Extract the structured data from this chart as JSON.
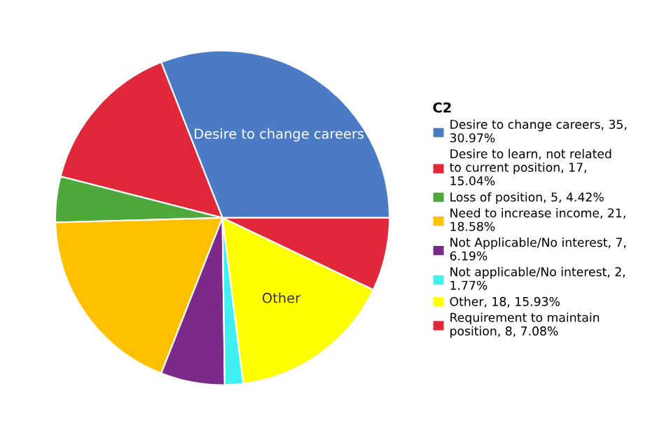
{
  "chart_data": {
    "type": "pie",
    "legend_title": "C2",
    "categories": [
      "Desire to change careers, 35, 30.97%",
      "Desire to learn, not related to current position, 17, 15.04%",
      "Loss of position, 5, 4.42%",
      "Need to increase income, 21, 18.58%",
      "Not Applicable/No interest, 7, 6.19%",
      "Not applicable/No interest, 2, 1.77%",
      "Other, 18, 15.93%",
      "Requirement to maintain position, 8, 7.08%"
    ],
    "values": [
      35,
      17,
      5,
      21,
      7,
      2,
      18,
      8
    ],
    "colors": [
      "#4a7bc4",
      "#e0283a",
      "#4ea83a",
      "#ffc000",
      "#7b2a8a",
      "#40f0f0",
      "#ffff00",
      "#e0283a"
    ],
    "annotations": [
      {
        "text": "Desire to change careers",
        "x": "Desire to change careers, 35, 30.97%"
      },
      {
        "text": "Other",
        "x": "Other, 18, 15.93%"
      }
    ],
    "legend": "right"
  }
}
